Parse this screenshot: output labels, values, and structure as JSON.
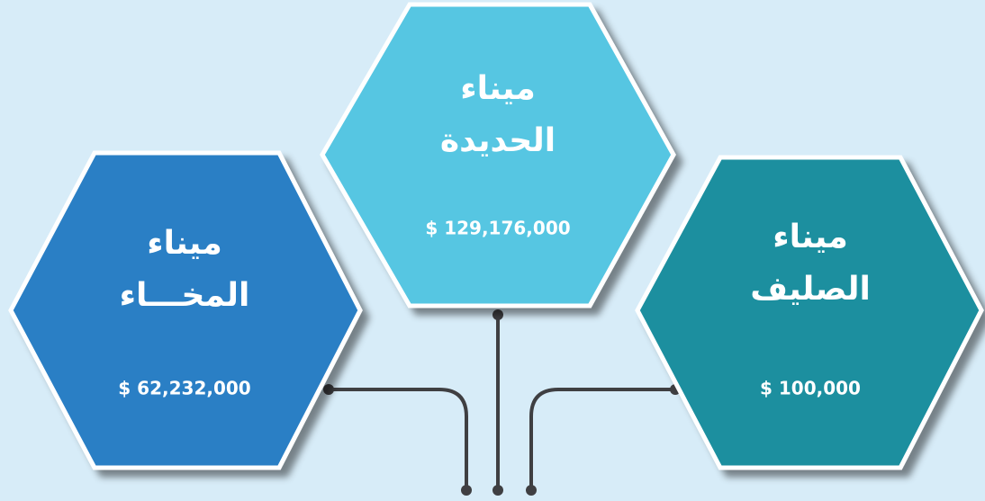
{
  "nodes": [
    {
      "title": "ميناء",
      "subtitle": "المخـــاء",
      "value": "$ 62,232,000"
    },
    {
      "title": "ميناء",
      "subtitle": "الحديدة",
      "value": "$ 129,176,000"
    },
    {
      "title": "ميناء",
      "subtitle": "الصليف",
      "value": "$ 100,000"
    }
  ]
}
